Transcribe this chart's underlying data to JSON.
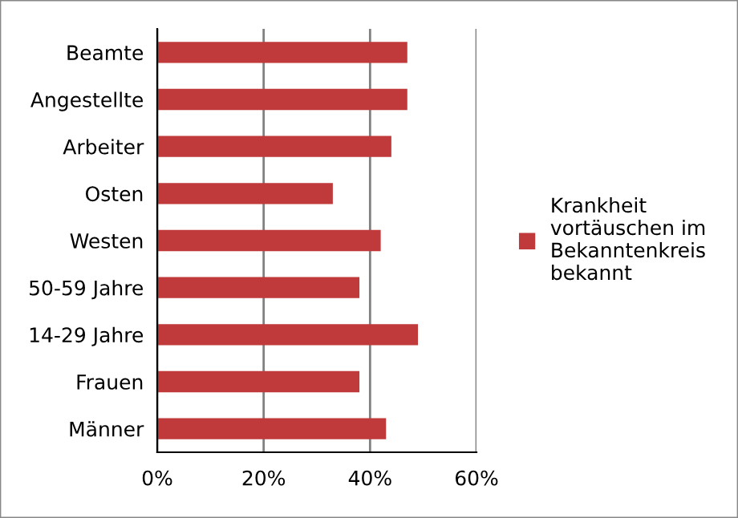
{
  "chart_data": {
    "type": "bar",
    "orientation": "horizontal",
    "categories": [
      "Beamte",
      "Angestellte",
      "Arbeiter",
      "Osten",
      "Westen",
      "50-59 Jahre",
      "14-29 Jahre",
      "Frauen",
      "Männer"
    ],
    "series": [
      {
        "name": "Krankheit\nvortäuschen im\nBekanntenkreis\nbekannt",
        "color": "#c0393b",
        "values": [
          47,
          47,
          44,
          33,
          42,
          38,
          49,
          38,
          43
        ]
      }
    ],
    "xlim": [
      0,
      60
    ],
    "xticks": [
      {
        "value": 0,
        "label": "0%"
      },
      {
        "value": 20,
        "label": "20%"
      },
      {
        "value": 40,
        "label": "40%"
      },
      {
        "value": 60,
        "label": "60%"
      }
    ],
    "grid": "x",
    "legend": "right"
  }
}
